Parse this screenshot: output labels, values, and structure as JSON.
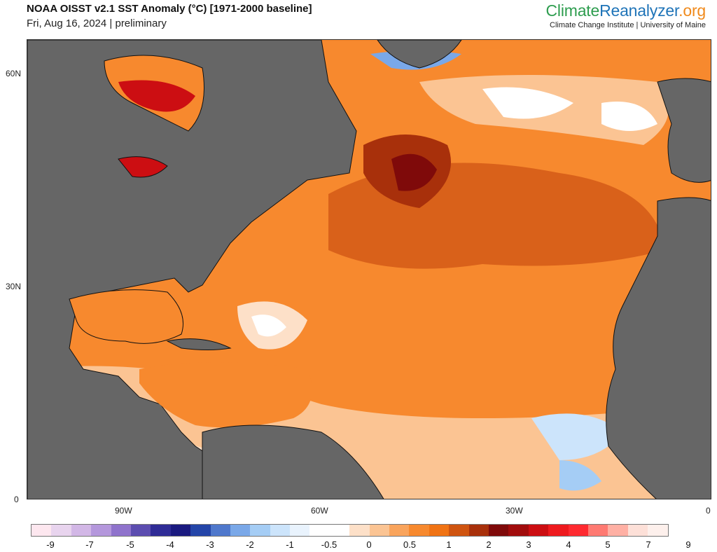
{
  "header": {
    "title": "NOAA OISST v2.1 SST Anomaly (°C) [1971-2000 baseline]",
    "subtitle": "Fri, Aug 16, 2024 | preliminary",
    "brand_part1": "Climate",
    "brand_part2": "Reanalyzer",
    "brand_part3": ".org",
    "brand_sub": "Climate Change Institute | University of Maine"
  },
  "map": {
    "lat_labels": [
      "60N",
      "30N",
      "0"
    ],
    "lon_labels": [
      "90W",
      "60W",
      "30W",
      "0"
    ]
  },
  "colorbar": {
    "colors": [
      "#fde7ef",
      "#e8d4ee",
      "#d2b7e6",
      "#b497dc",
      "#8f73cc",
      "#5c4db0",
      "#2f2c96",
      "#1a1a80",
      "#2445a8",
      "#4f78cc",
      "#7aa8e8",
      "#a5cdf5",
      "#cce4fb",
      "#e9f3fd",
      "#ffffff",
      "#ffffff",
      "#fde0c8",
      "#fbc493",
      "#f9a45c",
      "#f7892e",
      "#f07314",
      "#cf5410",
      "#a8300b",
      "#7f0a0a",
      "#a10c0c",
      "#cc0e12",
      "#ee1a1e",
      "#ff2a30",
      "#ff7a72",
      "#ffb0a4",
      "#fde0d8",
      "#fdf0ec"
    ],
    "ticks": [
      "-9",
      "-7",
      "-5",
      "-4",
      "-3",
      "-2",
      "-1",
      "-0.5",
      "0",
      "0.5",
      "1",
      "2",
      "3",
      "4",
      "5",
      "7",
      "9"
    ]
  }
}
